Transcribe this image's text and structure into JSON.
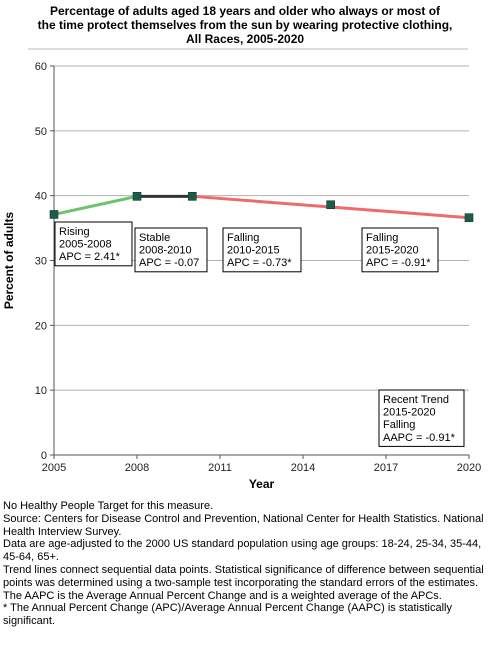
{
  "chart_data": {
    "type": "line",
    "title_lines": [
      "Percentage of adults aged 18 years and older who always or most of",
      "the time protect themselves from the sun by wearing protective clothing,",
      "All Races,  2005-2020"
    ],
    "xlabel": "Year",
    "ylabel": "Percent of adults",
    "xlim": [
      2005,
      2020
    ],
    "ylim": [
      0,
      60
    ],
    "x_ticks": [
      "2005",
      "2008",
      "2011",
      "2014",
      "2017",
      "2020"
    ],
    "y_ticks": [
      "0",
      "10",
      "20",
      "30",
      "40",
      "50",
      "60"
    ],
    "grid": true,
    "points": [
      {
        "x": 2005,
        "y": 37.1
      },
      {
        "x": 2008,
        "y": 39.9
      },
      {
        "x": 2010,
        "y": 39.9
      },
      {
        "x": 2015,
        "y": 38.6
      },
      {
        "x": 2020,
        "y": 36.6
      }
    ],
    "segments": [
      {
        "from": 2005,
        "to": 2008,
        "trend": "rising",
        "color": "#6cc46a"
      },
      {
        "from": 2008,
        "to": 2010,
        "trend": "stable",
        "color": "#333333"
      },
      {
        "from": 2010,
        "to": 2020,
        "trend": "falling",
        "color": "#ef6b6b"
      }
    ],
    "annotations": [
      {
        "lines": [
          "Rising",
          "2005-2008",
          "APC =  2.41*"
        ]
      },
      {
        "lines": [
          "Stable",
          "2008-2010",
          "APC = -0.07"
        ]
      },
      {
        "lines": [
          "Falling",
          "2010-2015",
          "APC = -0.73*"
        ]
      },
      {
        "lines": [
          "Falling",
          "2015-2020",
          "APC = -0.91*"
        ]
      },
      {
        "lines": [
          "Recent Trend",
          "2015-2020",
          "Falling",
          "AAPC = -0.91*"
        ]
      }
    ],
    "marker_color": "#1d5c4a"
  },
  "notes": [
    "No Healthy People Target for this measure.",
    "Source: Centers for Disease Control and Prevention, National Center for Health Statistics. National Health Interview Survey.",
    "Data are age-adjusted to the 2000 US standard population using age groups: 18-24, 25-34, 35-44, 45-64, 65+.",
    "Trend lines connect sequential data points. Statistical significance of difference between sequential points was determined using a two-sample test incorporating the standard errors of the estimates.",
    "The AAPC is the Average Annual Percent Change and is a weighted average of the APCs.",
    "* The Annual Percent Change (APC)/Average Annual Percent Change (AAPC) is statistically significant."
  ]
}
